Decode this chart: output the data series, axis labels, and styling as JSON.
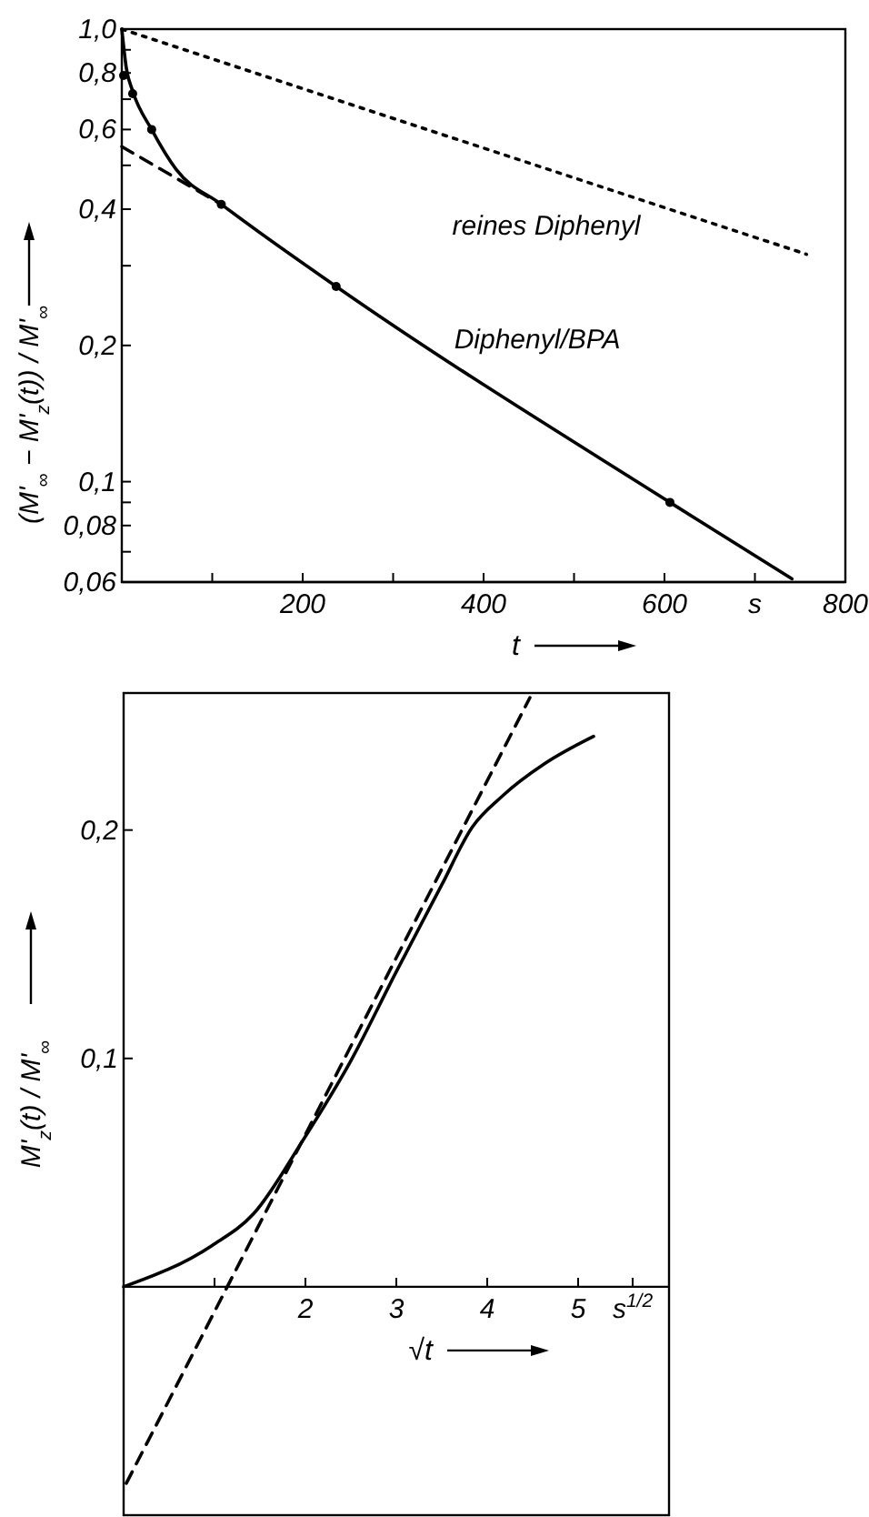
{
  "chart_data": [
    {
      "type": "line",
      "xlabel": "t",
      "ylabel": "(M'$_{∞}$ − M'$_{z}$(t)) / M'$_{∞}$",
      "log": "y",
      "grid": false,
      "xlim": [
        0,
        800
      ],
      "ylim": [
        0.06,
        1.0
      ],
      "xticks": [
        {
          "value": 100,
          "label": null
        },
        {
          "value": 200,
          "label": "200"
        },
        {
          "value": 300,
          "label": null
        },
        {
          "value": 400,
          "label": "400"
        },
        {
          "value": 500,
          "label": null
        },
        {
          "value": 600,
          "label": "600"
        },
        {
          "value": 700,
          "label": "s"
        },
        {
          "value": 800,
          "label": "800"
        }
      ],
      "yticks": [
        {
          "value": 0.06,
          "label": "0,06"
        },
        {
          "value": 0.07,
          "label": null
        },
        {
          "value": 0.08,
          "label": "0,08"
        },
        {
          "value": 0.09,
          "label": null
        },
        {
          "value": 0.1,
          "label": "0,1"
        },
        {
          "value": 0.2,
          "label": "0,2"
        },
        {
          "value": 0.3,
          "label": null
        },
        {
          "value": 0.4,
          "label": "0,4"
        },
        {
          "value": 0.5,
          "label": null
        },
        {
          "value": 0.6,
          "label": "0,6"
        },
        {
          "value": 0.7,
          "label": null
        },
        {
          "value": 0.8,
          "label": "0,8"
        },
        {
          "value": 0.9,
          "label": null
        },
        {
          "value": 1.0,
          "label": "1,0"
        }
      ],
      "series": [
        {
          "name": "reines Diphenyl",
          "line_style": "dotted",
          "color": "#000000",
          "x": [
            0,
            757
          ],
          "values": [
            1.0,
            0.318
          ]
        },
        {
          "name": "Diphenyl/BPA",
          "line_style": "solid",
          "color": "#000000",
          "x": [
            0,
            5,
            12,
            33,
            60,
            110,
            237,
            606,
            741
          ],
          "values": [
            1.0,
            0.82,
            0.73,
            0.6,
            0.49,
            0.41,
            0.27,
            0.09,
            0.061
          ]
        },
        {
          "type": "line",
          "line_style": "dashed",
          "color": "#000000",
          "x": [
            0,
            110
          ],
          "values": [
            0.55,
            0.41
          ]
        },
        {
          "type": "scatter",
          "marker": "circle",
          "color": "#000000",
          "x": [
            2,
            12,
            33,
            110,
            237,
            606
          ],
          "values": [
            0.79,
            0.72,
            0.6,
            0.41,
            0.27,
            0.09
          ]
        }
      ]
    },
    {
      "type": "line",
      "xlabel": "√t",
      "ylabel": "M'$_{z}$(t) / M'$_{∞}$",
      "grid": false,
      "xlim": [
        0,
        6
      ],
      "ylim": [
        -0.1,
        0.26
      ],
      "xticks": [
        {
          "value": 1,
          "label": null
        },
        2,
        3,
        4,
        5,
        {
          "value": 5.6,
          "label": "s$^{1/2}$"
        }
      ],
      "yticks": [
        {
          "value": 0.1,
          "label": "0,1"
        },
        {
          "value": 0.2,
          "label": "0,2"
        }
      ],
      "series": [
        {
          "line_style": "solid",
          "color": "#000000",
          "x": [
            0,
            0.97,
            1.43,
            1.97,
            2.5,
            3.0,
            3.5,
            3.83,
            4.17,
            4.63,
            5.17
          ],
          "values": [
            0,
            0.018,
            0.032,
            0.064,
            0.099,
            0.138,
            0.176,
            0.201,
            0.215,
            0.229,
            0.241
          ]
        },
        {
          "type": "line",
          "line_style": "dashed",
          "color": "#000000",
          "x": [
            0.03,
            4.47
          ],
          "values": [
            -0.086,
            0.258
          ]
        }
      ]
    }
  ]
}
